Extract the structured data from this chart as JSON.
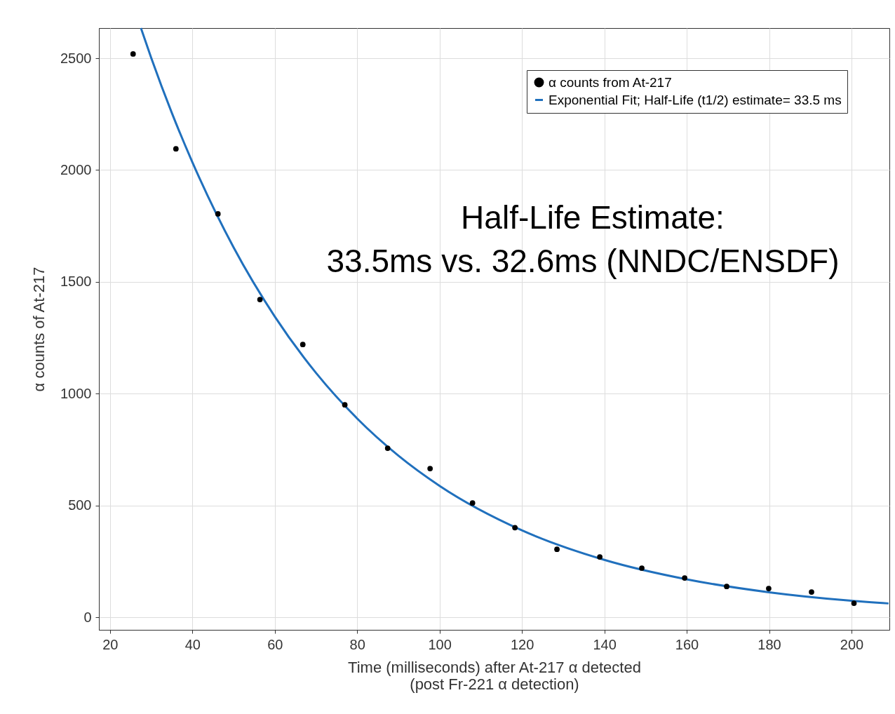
{
  "chart_data": {
    "type": "scatter",
    "xlabel": "Time (milliseconds) after At-217 α detected\n(post Fr-221 α detection)",
    "ylabel": "α counts of At-217",
    "xlim": [
      17.3,
      209.2
    ],
    "xticks": [
      20,
      40,
      60,
      80,
      100,
      120,
      140,
      160,
      180,
      200
    ],
    "ylim": [
      -56,
      2635
    ],
    "yticks": [
      0,
      500,
      1000,
      1500,
      2000,
      2500
    ],
    "grid": true,
    "legend": "top right",
    "marker": "circle",
    "x": [
      25.6,
      36.0,
      46.2,
      56.4,
      66.8,
      77.0,
      87.4,
      97.7,
      108.0,
      118.3,
      128.5,
      138.9,
      149.1,
      159.5,
      169.7,
      179.9,
      190.3,
      200.6
    ],
    "series": [
      {
        "name": "α counts from At-217",
        "color": "#000000",
        "values": [
          2519,
          2095,
          1804,
          1421,
          1220,
          950,
          756,
          665,
          511,
          401,
          304,
          270,
          220,
          176,
          138,
          129,
          113,
          63
        ]
      },
      {
        "name": "Exponential Fit; Half-Life (t1/2) estimate= 33.5 ms",
        "type": "line",
        "color": "#2070bd",
        "marker": "none",
        "x": [
          27.5,
          30,
          35,
          40,
          50,
          60,
          70,
          80,
          90,
          100,
          120,
          140,
          160,
          180,
          200,
          209
        ],
        "values": [
          2635,
          2502,
          2256,
          2035,
          1654,
          1345,
          1093,
          889,
          723,
          588,
          389,
          257,
          170,
          112,
          74,
          62
        ]
      }
    ],
    "annotations": [
      "Half-Life Estimate:",
      "33.5ms vs. 32.6ms (NNDC/ENSDF)"
    ]
  }
}
